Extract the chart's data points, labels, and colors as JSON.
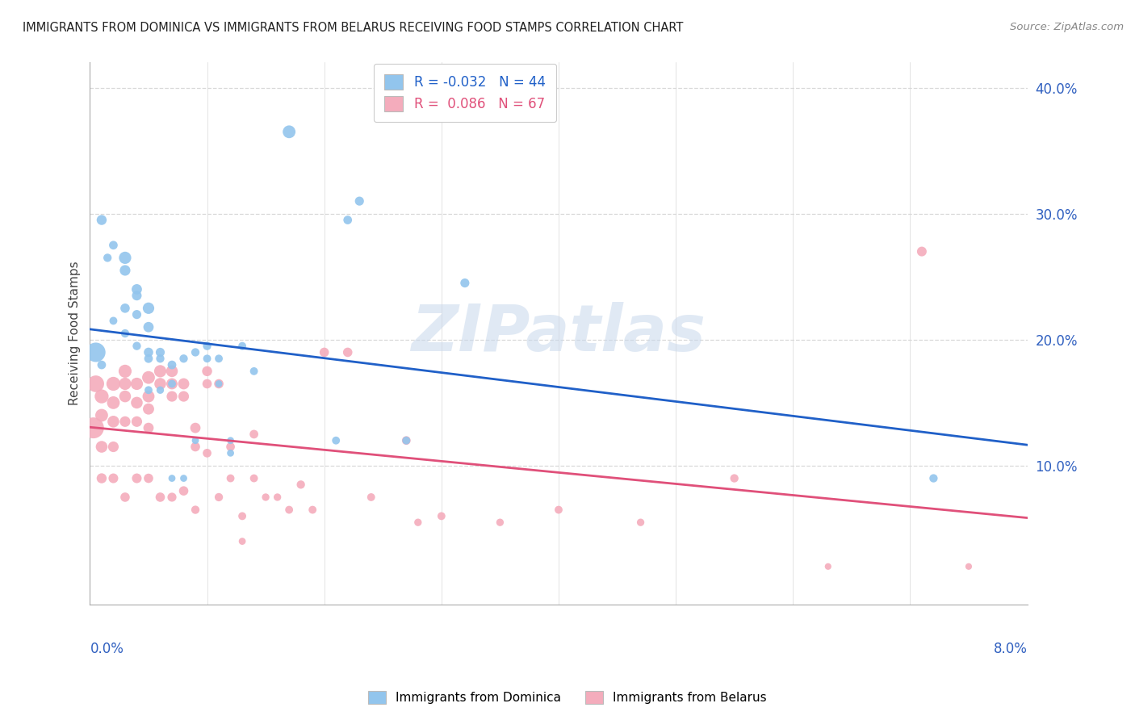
{
  "title": "IMMIGRANTS FROM DOMINICA VS IMMIGRANTS FROM BELARUS RECEIVING FOOD STAMPS CORRELATION CHART",
  "source": "Source: ZipAtlas.com",
  "ylabel": "Receiving Food Stamps",
  "xmin": 0.0,
  "xmax": 0.08,
  "ymin": -0.01,
  "ymax": 0.42,
  "legend_entry1": "R = -0.032   N = 44",
  "legend_entry2": "R =  0.086   N = 67",
  "legend_label1": "Immigrants from Dominica",
  "legend_label2": "Immigrants from Belarus",
  "dominica_color": "#92C5ED",
  "belarus_color": "#F4ACBC",
  "dominica_line_color": "#2060C8",
  "belarus_line_color": "#E0507A",
  "watermark_text": "ZIPatlas",
  "background_color": "#ffffff",
  "grid_color": "#d8d8d8",
  "dominica_x": [
    0.0005,
    0.001,
    0.001,
    0.0015,
    0.002,
    0.002,
    0.003,
    0.003,
    0.003,
    0.003,
    0.004,
    0.004,
    0.004,
    0.004,
    0.005,
    0.005,
    0.005,
    0.005,
    0.005,
    0.006,
    0.006,
    0.006,
    0.007,
    0.007,
    0.007,
    0.008,
    0.008,
    0.009,
    0.009,
    0.01,
    0.01,
    0.011,
    0.011,
    0.012,
    0.012,
    0.013,
    0.014,
    0.017,
    0.021,
    0.022,
    0.023,
    0.027,
    0.032,
    0.072
  ],
  "dominica_y": [
    0.19,
    0.295,
    0.18,
    0.265,
    0.275,
    0.215,
    0.265,
    0.255,
    0.225,
    0.205,
    0.24,
    0.235,
    0.22,
    0.195,
    0.225,
    0.21,
    0.19,
    0.185,
    0.16,
    0.19,
    0.185,
    0.16,
    0.18,
    0.165,
    0.09,
    0.185,
    0.09,
    0.19,
    0.12,
    0.195,
    0.185,
    0.185,
    0.165,
    0.12,
    0.11,
    0.195,
    0.175,
    0.365,
    0.12,
    0.295,
    0.31,
    0.12,
    0.245,
    0.09
  ],
  "dominica_sizes": [
    300,
    80,
    60,
    55,
    60,
    50,
    120,
    90,
    70,
    55,
    85,
    75,
    65,
    55,
    105,
    85,
    70,
    60,
    50,
    65,
    55,
    45,
    60,
    50,
    40,
    55,
    40,
    55,
    40,
    55,
    50,
    50,
    40,
    40,
    40,
    50,
    50,
    130,
    50,
    60,
    65,
    50,
    65,
    55
  ],
  "belarus_x": [
    0.0003,
    0.0005,
    0.001,
    0.001,
    0.001,
    0.001,
    0.002,
    0.002,
    0.002,
    0.002,
    0.002,
    0.003,
    0.003,
    0.003,
    0.003,
    0.003,
    0.004,
    0.004,
    0.004,
    0.004,
    0.005,
    0.005,
    0.005,
    0.005,
    0.005,
    0.006,
    0.006,
    0.006,
    0.007,
    0.007,
    0.007,
    0.007,
    0.008,
    0.008,
    0.008,
    0.009,
    0.009,
    0.009,
    0.01,
    0.01,
    0.01,
    0.011,
    0.011,
    0.012,
    0.012,
    0.013,
    0.013,
    0.014,
    0.014,
    0.015,
    0.016,
    0.017,
    0.018,
    0.019,
    0.02,
    0.022,
    0.024,
    0.027,
    0.028,
    0.03,
    0.035,
    0.04,
    0.047,
    0.055,
    0.063,
    0.071,
    0.075
  ],
  "belarus_y": [
    0.13,
    0.165,
    0.155,
    0.14,
    0.115,
    0.09,
    0.165,
    0.15,
    0.135,
    0.115,
    0.09,
    0.175,
    0.165,
    0.155,
    0.135,
    0.075,
    0.165,
    0.15,
    0.135,
    0.09,
    0.17,
    0.155,
    0.145,
    0.13,
    0.09,
    0.175,
    0.165,
    0.075,
    0.175,
    0.165,
    0.155,
    0.075,
    0.165,
    0.155,
    0.08,
    0.13,
    0.115,
    0.065,
    0.175,
    0.165,
    0.11,
    0.165,
    0.075,
    0.115,
    0.09,
    0.06,
    0.04,
    0.125,
    0.09,
    0.075,
    0.075,
    0.065,
    0.085,
    0.065,
    0.19,
    0.19,
    0.075,
    0.12,
    0.055,
    0.06,
    0.055,
    0.065,
    0.055,
    0.09,
    0.02,
    0.27,
    0.02
  ],
  "belarus_sizes": [
    350,
    220,
    155,
    130,
    110,
    80,
    155,
    130,
    110,
    90,
    75,
    135,
    120,
    110,
    90,
    70,
    120,
    110,
    90,
    75,
    130,
    115,
    100,
    85,
    70,
    120,
    110,
    70,
    110,
    100,
    90,
    65,
    100,
    90,
    70,
    85,
    70,
    55,
    80,
    70,
    60,
    70,
    55,
    60,
    50,
    50,
    40,
    60,
    50,
    45,
    45,
    50,
    55,
    50,
    70,
    70,
    50,
    60,
    45,
    50,
    45,
    50,
    45,
    55,
    35,
    75,
    35
  ]
}
